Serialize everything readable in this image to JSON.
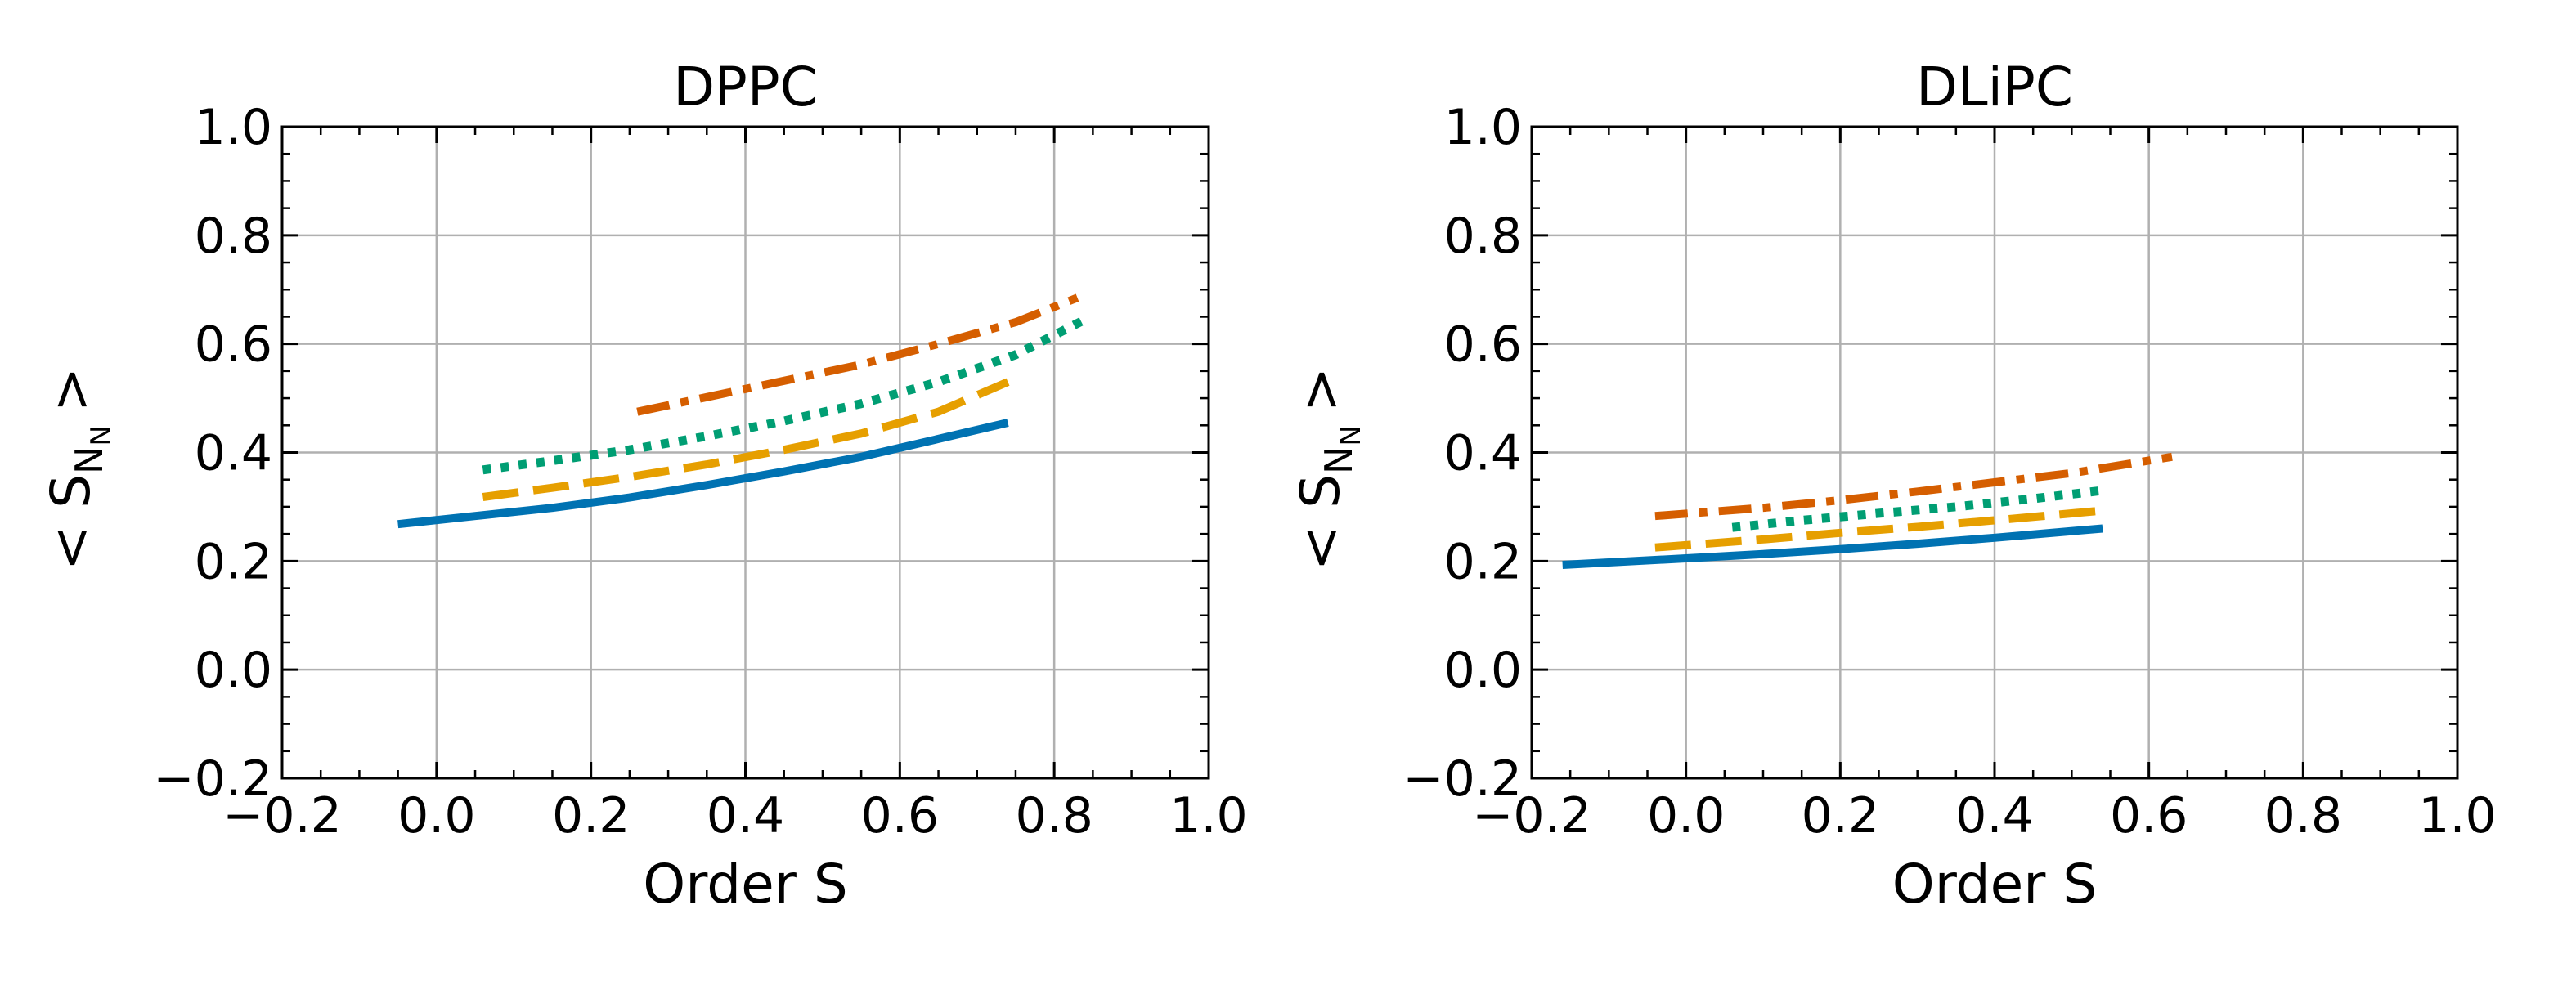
{
  "chart_data": [
    {
      "type": "line",
      "title": "DPPC",
      "xlabel": "Order S",
      "ylabel_prefix": "< S",
      "ylabel_sub": "N",
      "ylabel_subsub": "N",
      "ylabel_suffix": ">",
      "xlim": [
        -0.2,
        1.0
      ],
      "ylim": [
        -0.2,
        1.0
      ],
      "xticks": [
        -0.2,
        0.0,
        0.2,
        0.4,
        0.6,
        0.8,
        1.0
      ],
      "yticks": [
        -0.2,
        0.0,
        0.2,
        0.4,
        0.6,
        0.8,
        1.0
      ],
      "xtick_labels": [
        "−0.2",
        "0.0",
        "0.2",
        "0.4",
        "0.6",
        "0.8",
        "1.0"
      ],
      "ytick_labels": [
        "−0.2",
        "0.0",
        "0.2",
        "0.4",
        "0.6",
        "0.8",
        "1.0"
      ],
      "grid": true,
      "series": [
        {
          "name": "solid",
          "color": "#0072B2",
          "style": "solid",
          "x": [
            -0.05,
            0.05,
            0.15,
            0.25,
            0.35,
            0.45,
            0.55,
            0.65,
            0.74
          ],
          "y": [
            0.268,
            0.283,
            0.298,
            0.317,
            0.34,
            0.365,
            0.392,
            0.425,
            0.455
          ]
        },
        {
          "name": "dashed",
          "color": "#E69F00",
          "style": "dashed",
          "x": [
            0.06,
            0.15,
            0.25,
            0.35,
            0.45,
            0.55,
            0.65,
            0.74
          ],
          "y": [
            0.318,
            0.335,
            0.355,
            0.378,
            0.405,
            0.435,
            0.475,
            0.53
          ]
        },
        {
          "name": "dotted",
          "color": "#009E73",
          "style": "dotted",
          "x": [
            0.06,
            0.15,
            0.25,
            0.35,
            0.45,
            0.55,
            0.65,
            0.75,
            0.84
          ],
          "y": [
            0.368,
            0.385,
            0.405,
            0.43,
            0.458,
            0.49,
            0.53,
            0.58,
            0.645
          ]
        },
        {
          "name": "dashdot",
          "color": "#D55E00",
          "style": "dashdot",
          "x": [
            0.26,
            0.35,
            0.45,
            0.55,
            0.65,
            0.75,
            0.83
          ],
          "y": [
            0.475,
            0.502,
            0.532,
            0.562,
            0.6,
            0.64,
            0.685
          ]
        }
      ]
    },
    {
      "type": "line",
      "title": "DLiPC",
      "xlabel": "Order S",
      "ylabel_prefix": "< S",
      "ylabel_sub": "N",
      "ylabel_subsub": "N",
      "ylabel_suffix": ">",
      "xlim": [
        -0.2,
        1.0
      ],
      "ylim": [
        -0.2,
        1.0
      ],
      "xticks": [
        -0.2,
        0.0,
        0.2,
        0.4,
        0.6,
        0.8,
        1.0
      ],
      "yticks": [
        -0.2,
        0.0,
        0.2,
        0.4,
        0.6,
        0.8,
        1.0
      ],
      "xtick_labels": [
        "−0.2",
        "0.0",
        "0.2",
        "0.4",
        "0.6",
        "0.8",
        "1.0"
      ],
      "ytick_labels": [
        "−0.2",
        "0.0",
        "0.2",
        "0.4",
        "0.6",
        "0.8",
        "1.0"
      ],
      "grid": true,
      "series": [
        {
          "name": "solid",
          "color": "#0072B2",
          "style": "solid",
          "x": [
            -0.16,
            0.0,
            0.1,
            0.2,
            0.3,
            0.4,
            0.54
          ],
          "y": [
            0.193,
            0.205,
            0.213,
            0.222,
            0.232,
            0.243,
            0.26
          ]
        },
        {
          "name": "dashed",
          "color": "#E69F00",
          "style": "dashed",
          "x": [
            -0.04,
            0.1,
            0.2,
            0.3,
            0.4,
            0.54
          ],
          "y": [
            0.225,
            0.24,
            0.252,
            0.263,
            0.275,
            0.293
          ]
        },
        {
          "name": "dotted",
          "color": "#009E73",
          "style": "dotted",
          "x": [
            0.06,
            0.15,
            0.25,
            0.35,
            0.45,
            0.54
          ],
          "y": [
            0.262,
            0.275,
            0.288,
            0.3,
            0.315,
            0.33
          ]
        },
        {
          "name": "dashdot",
          "color": "#D55E00",
          "style": "dashdot",
          "x": [
            -0.04,
            0.1,
            0.2,
            0.3,
            0.4,
            0.5,
            0.63
          ],
          "y": [
            0.283,
            0.298,
            0.312,
            0.328,
            0.345,
            0.362,
            0.392
          ]
        }
      ]
    }
  ]
}
